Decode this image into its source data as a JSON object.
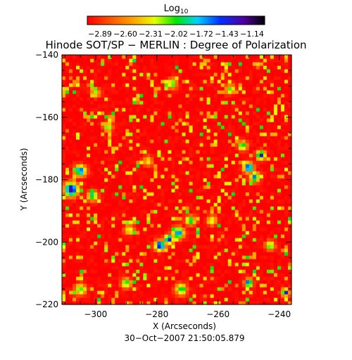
{
  "chart_data": {
    "type": "heatmap",
    "title": "Hinode SOT/SP − MERLIN : Degree of Polarization",
    "colorbar": {
      "label": "Log",
      "label_sub": "10",
      "tick_labels": [
        "−2.89",
        "−2.60",
        "−2.31",
        "−2.02",
        "−1.72",
        "−1.43",
        "−1.14"
      ],
      "range": [
        -2.89,
        -1.14
      ],
      "colormap": "rainbow: red → orange → yellow → green → cyan → blue → purple → black"
    },
    "xlabel": "X (Arcseconds)",
    "ylabel": "Y (Arcseconds)",
    "xlim": [
      -311,
      -236
    ],
    "ylim": [
      -220,
      -140
    ],
    "xtick_labels": [
      "−300",
      "−280",
      "−260",
      "−240"
    ],
    "xticks": [
      -300,
      -280,
      -260,
      -240
    ],
    "ytick_labels": [
      "−220",
      "−200",
      "−180",
      "−160",
      "−140"
    ],
    "yticks": [
      -220,
      -200,
      -180,
      -160,
      -140
    ],
    "timestamp": "30−Oct−2007 21:50:05.879",
    "background_level": -2.89,
    "features": [
      {
        "x": -308,
        "y": -183,
        "level": -1.3,
        "sigma": 2.2
      },
      {
        "x": -305,
        "y": -177,
        "level": -1.6,
        "sigma": 1.8
      },
      {
        "x": -301,
        "y": -185,
        "level": -1.8,
        "sigma": 1.6
      },
      {
        "x": -279,
        "y": -201,
        "level": -1.35,
        "sigma": 1.6
      },
      {
        "x": -276,
        "y": -199,
        "level": -1.4,
        "sigma": 1.5
      },
      {
        "x": -273,
        "y": -197,
        "level": -1.6,
        "sigma": 1.8
      },
      {
        "x": -269,
        "y": -193,
        "level": -1.9,
        "sigma": 1.6
      },
      {
        "x": -246,
        "y": -172,
        "level": -1.4,
        "sigma": 1.4
      },
      {
        "x": -250,
        "y": -176,
        "level": -1.5,
        "sigma": 1.6
      },
      {
        "x": -248,
        "y": -179,
        "level": -1.6,
        "sigma": 1.5
      },
      {
        "x": -252,
        "y": -169,
        "level": -1.9,
        "sigma": 1.5
      },
      {
        "x": -250,
        "y": -213,
        "level": -1.5,
        "sigma": 1.3
      },
      {
        "x": -238,
        "y": -216,
        "level": -1.4,
        "sigma": 1.2
      },
      {
        "x": -272,
        "y": -215,
        "level": -1.9,
        "sigma": 1.8
      },
      {
        "x": -290,
        "y": -213,
        "level": -1.9,
        "sigma": 1.6
      },
      {
        "x": -305,
        "y": -215,
        "level": -2.0,
        "sigma": 1.8
      },
      {
        "x": -275,
        "y": -149,
        "level": -2.0,
        "sigma": 1.6
      },
      {
        "x": -256,
        "y": -151,
        "level": -2.0,
        "sigma": 1.5
      },
      {
        "x": -296,
        "y": -163,
        "level": -2.0,
        "sigma": 1.5
      },
      {
        "x": -262,
        "y": -193,
        "level": -2.1,
        "sigma": 1.5
      },
      {
        "x": -300,
        "y": -152,
        "level": -2.1,
        "sigma": 1.4
      },
      {
        "x": -289,
        "y": -196,
        "level": -2.1,
        "sigma": 1.5
      },
      {
        "x": -243,
        "y": -201,
        "level": -2.0,
        "sigma": 1.5
      },
      {
        "x": -283,
        "y": -174,
        "level": -2.2,
        "sigma": 1.5
      }
    ]
  }
}
